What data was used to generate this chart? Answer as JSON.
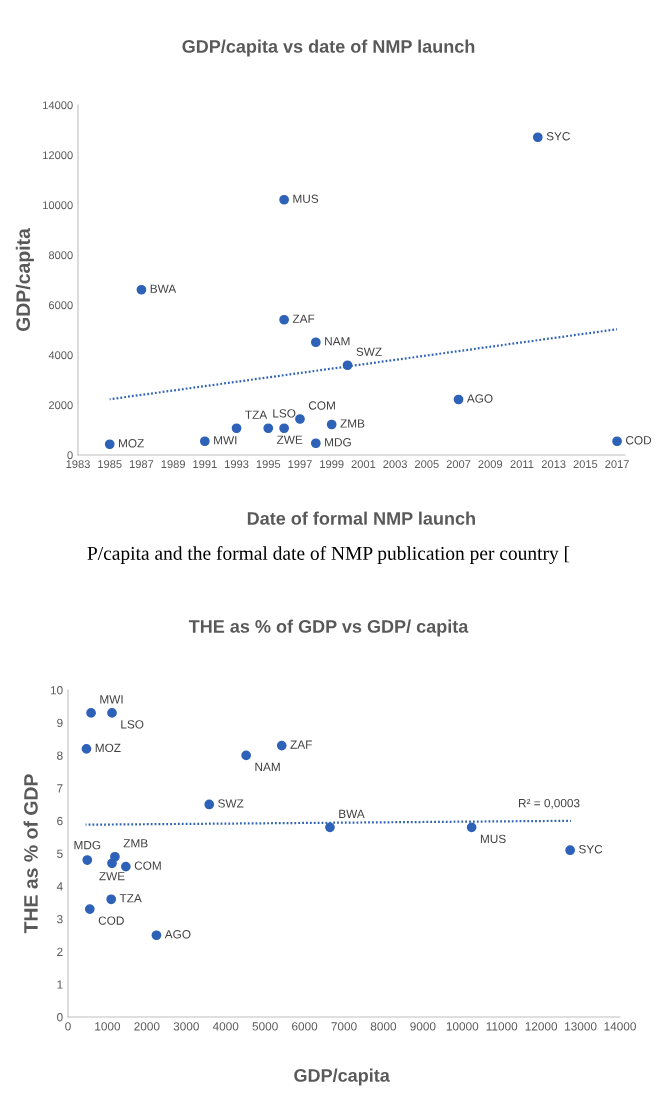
{
  "chart_data": [
    {
      "type": "scatter",
      "title": "GDP/capita vs date of NMP launch",
      "xlabel": "Date of formal NMP launch",
      "ylabel": "GDP/capita",
      "xlim": [
        1983,
        2017.5
      ],
      "xticks": [
        1983,
        1985,
        1987,
        1989,
        1991,
        1993,
        1995,
        1997,
        1999,
        2001,
        2003,
        2005,
        2007,
        2009,
        2011,
        2013,
        2015,
        2017
      ],
      "ylim": [
        0,
        14000
      ],
      "yticks": [
        0,
        2000,
        4000,
        6000,
        8000,
        10000,
        12000,
        14000
      ],
      "grid": false,
      "series": [
        {
          "marker": "circle",
          "color": "#2e62b8",
          "x": [
            1985,
            1987,
            1991,
            1993,
            1995,
            1996,
            1996,
            1996,
            1997,
            1998,
            1998,
            1999,
            2000,
            2007,
            2012,
            2017
          ],
          "values": [
            430,
            6610,
            550,
            1070,
            1070,
            1070,
            10210,
            5410,
            1440,
            4510,
            470,
            1220,
            3590,
            2220,
            12710,
            550
          ]
        },
        {
          "type": "line",
          "color": "#2e62b8",
          "line_style": "dotted",
          "x": [
            1985,
            2017
          ],
          "values": [
            2230,
            5030
          ]
        }
      ],
      "annotations": [
        {
          "text": "MOZ",
          "x": 1985,
          "y": 430
        },
        {
          "text": "BWA",
          "x": 1987,
          "y": 6610
        },
        {
          "text": "MWI",
          "x": 1991,
          "y": 550
        },
        {
          "text": "TZA",
          "x": 1993,
          "y": 1070
        },
        {
          "text": "ZWE",
          "x": 1995,
          "y": 1070
        },
        {
          "text": "LSO",
          "x": 1996,
          "y": 1070
        },
        {
          "text": "MUS",
          "x": 1996,
          "y": 10210
        },
        {
          "text": "ZAF",
          "x": 1996,
          "y": 5410
        },
        {
          "text": "COM",
          "x": 1997,
          "y": 1440
        },
        {
          "text": "NAM",
          "x": 1998,
          "y": 4510
        },
        {
          "text": "MDG",
          "x": 1998,
          "y": 470
        },
        {
          "text": "ZMB",
          "x": 1999,
          "y": 1220
        },
        {
          "text": "SWZ",
          "x": 2000,
          "y": 3590
        },
        {
          "text": "AGO",
          "x": 2007,
          "y": 2220
        },
        {
          "text": "SYC",
          "x": 2012,
          "y": 12710
        },
        {
          "text": "COD",
          "x": 2017,
          "y": 550
        },
        "P/capita and the formal date of NMP publication per country ["
      ]
    },
    {
      "type": "scatter",
      "title": "THE as % of GDP vs GDP/ capita",
      "xlabel": "GDP/capita",
      "ylabel": "THE as % of GDP",
      "xlim": [
        0,
        14000
      ],
      "xticks": [
        0,
        1000,
        2000,
        3000,
        4000,
        5000,
        6000,
        7000,
        8000,
        9000,
        10000,
        11000,
        12000,
        13000,
        14000
      ],
      "ylim": [
        0,
        10
      ],
      "yticks": [
        0,
        1,
        2,
        3,
        4,
        5,
        6,
        7,
        8,
        9,
        10
      ],
      "grid": false,
      "series": [
        {
          "marker": "circle",
          "color": "#2e62b8",
          "x": [
            585,
            1116,
            468,
            4518,
            5421,
            3582,
            6644,
            10237,
            12735,
            489,
            1190,
            1116,
            1467,
            1095,
            553,
            2243
          ],
          "values": [
            9.3,
            9.3,
            8.2,
            8.0,
            8.3,
            6.5,
            5.8,
            5.8,
            5.1,
            4.8,
            4.9,
            4.7,
            4.6,
            3.6,
            3.3,
            2.5
          ]
        },
        {
          "type": "line",
          "color": "#2e62b8",
          "line_style": "dotted",
          "x": [
            447,
            12756
          ],
          "values": [
            5.88,
            6.0
          ]
        }
      ],
      "annotations": [
        {
          "text": "MWI",
          "x": 585,
          "y": 9.3
        },
        {
          "text": "LSO",
          "x": 1116,
          "y": 9.3
        },
        {
          "text": "MOZ",
          "x": 468,
          "y": 8.2
        },
        {
          "text": "NAM",
          "x": 4518,
          "y": 8.0
        },
        {
          "text": "ZAF",
          "x": 5421,
          "y": 8.3
        },
        {
          "text": "SWZ",
          "x": 3582,
          "y": 6.5
        },
        {
          "text": "BWA",
          "x": 6644,
          "y": 5.8
        },
        {
          "text": "MUS",
          "x": 10237,
          "y": 5.8
        },
        {
          "text": "SYC",
          "x": 12735,
          "y": 5.1
        },
        {
          "text": "MDG",
          "x": 489,
          "y": 4.8
        },
        {
          "text": "ZMB",
          "x": 1190,
          "y": 4.9
        },
        {
          "text": "ZWE",
          "x": 1116,
          "y": 4.7
        },
        {
          "text": "COM",
          "x": 1467,
          "y": 4.6
        },
        {
          "text": "TZA",
          "x": 1095,
          "y": 3.6
        },
        {
          "text": "COD",
          "x": 553,
          "y": 3.3
        },
        {
          "text": "AGO",
          "x": 2243,
          "y": 2.5
        },
        {
          "text": "R² = 0,0003",
          "x": 12200,
          "y": 6.0
        }
      ]
    }
  ]
}
